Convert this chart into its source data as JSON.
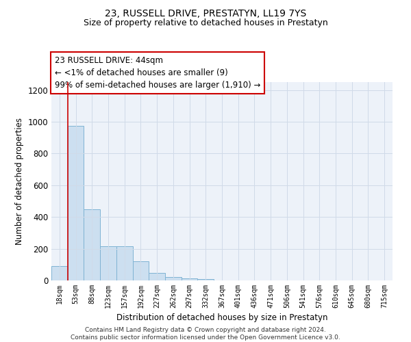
{
  "title": "23, RUSSELL DRIVE, PRESTATYN, LL19 7YS",
  "subtitle": "Size of property relative to detached houses in Prestatyn",
  "xlabel": "Distribution of detached houses by size in Prestatyn",
  "ylabel": "Number of detached properties",
  "bar_labels": [
    "18sqm",
    "53sqm",
    "88sqm",
    "123sqm",
    "157sqm",
    "192sqm",
    "227sqm",
    "262sqm",
    "297sqm",
    "332sqm",
    "367sqm",
    "401sqm",
    "436sqm",
    "471sqm",
    "506sqm",
    "541sqm",
    "576sqm",
    "610sqm",
    "645sqm",
    "680sqm",
    "715sqm"
  ],
  "bar_values": [
    90,
    975,
    450,
    215,
    215,
    120,
    47,
    20,
    13,
    8,
    0,
    0,
    0,
    0,
    0,
    0,
    0,
    0,
    0,
    0,
    0
  ],
  "bar_color": "#ccdff0",
  "bar_edge_color": "#7fb3d3",
  "vline_color": "#cc0000",
  "annotation_lines": [
    "23 RUSSELL DRIVE: 44sqm",
    "← <1% of detached houses are smaller (9)",
    "99% of semi-detached houses are larger (1,910) →"
  ],
  "annotation_box_color": "#ffffff",
  "annotation_box_edge": "#cc0000",
  "ylim": [
    0,
    1250
  ],
  "yticks": [
    0,
    200,
    400,
    600,
    800,
    1000,
    1200
  ],
  "footer_lines": [
    "Contains HM Land Registry data © Crown copyright and database right 2024.",
    "Contains public sector information licensed under the Open Government Licence v3.0."
  ],
  "grid_color": "#d0dae8",
  "bg_color": "#edf2f9"
}
